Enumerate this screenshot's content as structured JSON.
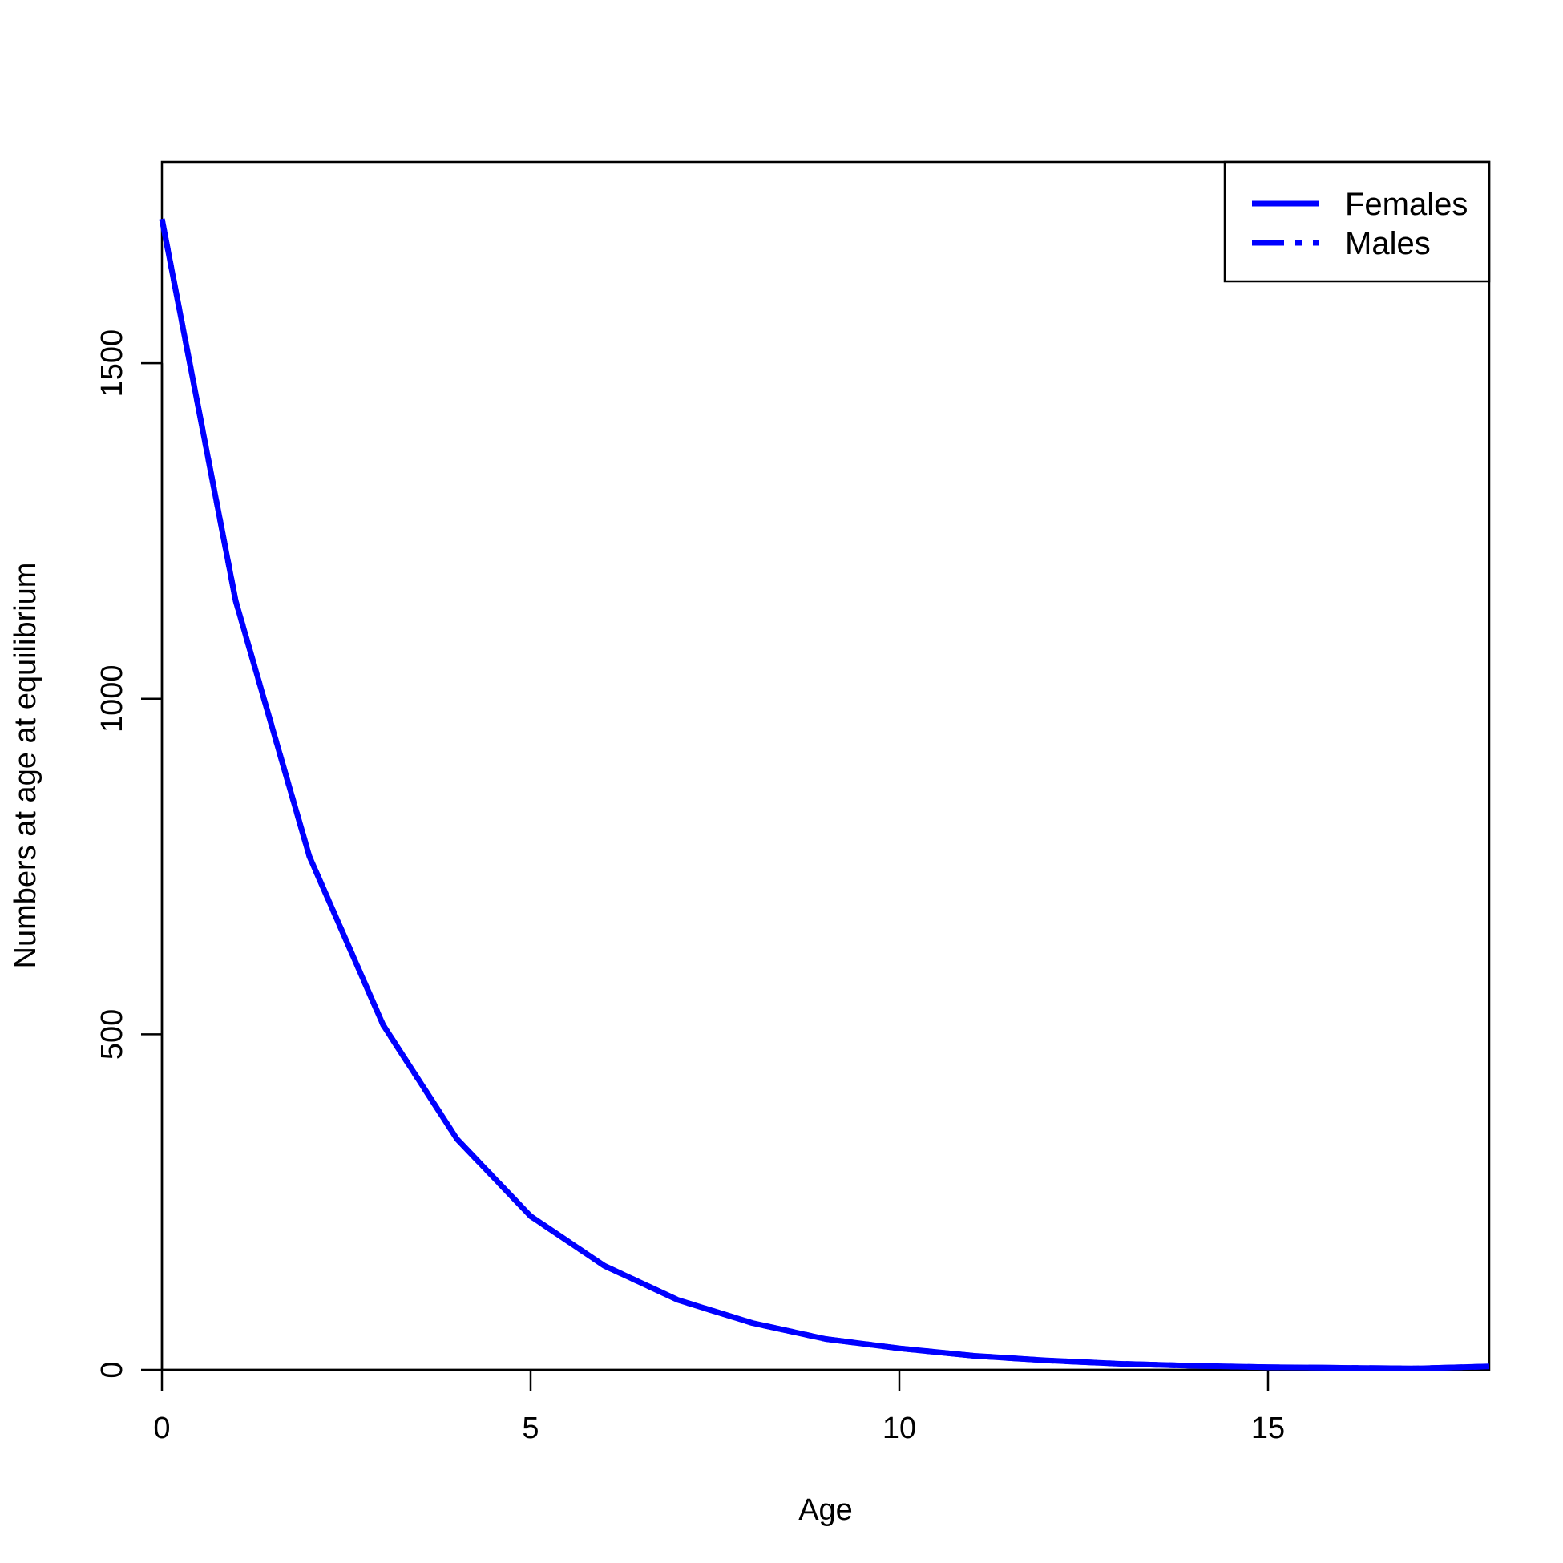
{
  "chart_data": {
    "type": "line",
    "title": "",
    "xlabel": "Age",
    "ylabel": "Numbers at age at equilibrium",
    "xlim": [
      0,
      18
    ],
    "ylim": [
      0,
      1800
    ],
    "x_ticks": [
      0,
      5,
      10,
      15
    ],
    "y_ticks": [
      0,
      500,
      1000,
      1500
    ],
    "grid": false,
    "legend_position": "top-right",
    "series": [
      {
        "name": "Females",
        "color": "#0000FF",
        "line_style": "solid",
        "x": [
          0,
          1,
          2,
          3,
          4,
          5,
          6,
          7,
          8,
          9,
          10,
          11,
          12,
          13,
          14,
          15,
          16,
          17,
          18
        ],
        "values": [
          1715,
          1146,
          765,
          514,
          344,
          229,
          155,
          104,
          70,
          46,
          32,
          21,
          14,
          9,
          6,
          4,
          3,
          2,
          5
        ]
      },
      {
        "name": "Males",
        "color": "#0000FF",
        "line_style": "dashdot",
        "x": [
          0,
          1,
          2,
          3,
          4,
          5,
          6,
          7,
          8,
          9,
          10,
          11,
          12,
          13,
          14,
          15,
          16,
          17,
          18
        ],
        "values": [
          1715,
          1146,
          765,
          514,
          344,
          229,
          155,
          104,
          70,
          46,
          32,
          21,
          14,
          9,
          6,
          4,
          3,
          2,
          5
        ]
      }
    ]
  }
}
